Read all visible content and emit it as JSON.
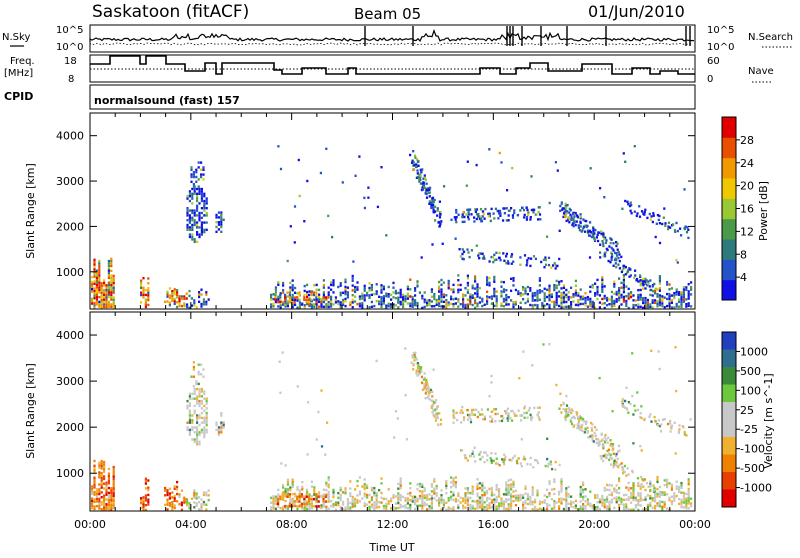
{
  "header": {
    "station": "Saskatoon (fitACF)",
    "beam": "Beam 05",
    "date": "01/Jun/2010"
  },
  "strip_sky": {
    "left_label": "N.Sky",
    "right_label": "N.Search",
    "ytick_top": "10^5",
    "ytick_bottom": "10^0"
  },
  "strip_freq": {
    "left_label_line1": "Freq.",
    "left_label_line2": "[MHz]",
    "right_label": "Nave",
    "left_ticks": [
      "18",
      "8"
    ],
    "right_ticks": [
      "60",
      "0"
    ]
  },
  "cpid": {
    "label": "CPID",
    "value": "normalsound (fast) 157"
  },
  "chart_data": [
    {
      "type": "heatmap",
      "name": "Power",
      "ylabel": "Slant Range [km]",
      "xlabel": "",
      "yticks": [
        "1000",
        "2000",
        "3000",
        "4000"
      ],
      "ylim": [
        180,
        4500
      ],
      "xlim": [
        0,
        24
      ],
      "colorbar": {
        "label": "Power [dB]",
        "ticks": [
          "4",
          "8",
          "12",
          "16",
          "20",
          "24",
          "28"
        ],
        "colors": [
          "#1010e6",
          "#2452c8",
          "#2e7a7a",
          "#4a9a4a",
          "#9ac832",
          "#f0c800",
          "#f09a00",
          "#e85000",
          "#e00000"
        ]
      }
    },
    {
      "type": "heatmap",
      "name": "Velocity",
      "ylabel": "Slant Range [km]",
      "xlabel": "Time UT",
      "yticks": [
        "1000",
        "2000",
        "3000",
        "4000"
      ],
      "xticks": [
        "00:00",
        "04:00",
        "08:00",
        "12:00",
        "16:00",
        "20:00",
        "00:00"
      ],
      "ylim": [
        180,
        4500
      ],
      "xlim": [
        0,
        24
      ],
      "colorbar": {
        "label": "Velocity [m s^-1]",
        "ticks": [
          "1000",
          "500",
          "100",
          "25",
          "-25",
          "-100",
          "-500",
          "-1000"
        ],
        "colors": [
          "#2040c0",
          "#2e6e8e",
          "#3a8a3a",
          "#6cc83c",
          "#c8c8c8",
          "#c8c8c8",
          "#f0b030",
          "#f08000",
          "#e84000",
          "#e00000"
        ]
      }
    }
  ]
}
